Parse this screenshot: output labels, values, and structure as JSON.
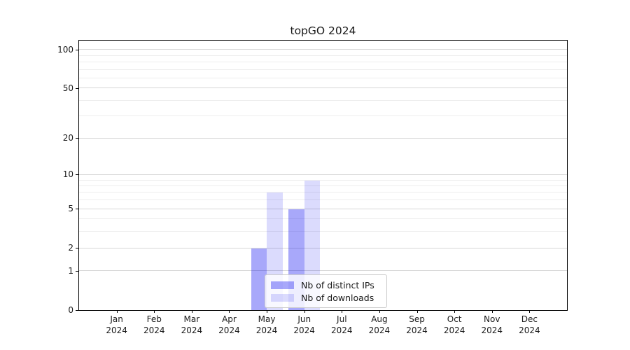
{
  "chart_data": {
    "type": "bar",
    "title": "topGO 2024",
    "categories": [
      "Jan 2024",
      "Feb 2024",
      "Mar 2024",
      "Apr 2024",
      "May 2024",
      "Jun 2024",
      "Jul 2024",
      "Aug 2024",
      "Sep 2024",
      "Oct 2024",
      "Nov 2024",
      "Dec 2024"
    ],
    "series": [
      {
        "name": "Nb of distinct IPs",
        "color": "#0000f0",
        "alpha": 0.34,
        "values": [
          0,
          0,
          0,
          0,
          2,
          5,
          0,
          0,
          0,
          0,
          0,
          0
        ]
      },
      {
        "name": "Nb of downloads",
        "color": "#0000f0",
        "alpha": 0.14,
        "values": [
          0,
          0,
          0,
          0,
          7,
          9,
          0,
          0,
          0,
          0,
          0,
          0
        ]
      }
    ],
    "y_axis": {
      "scale": "log1p",
      "ticks": [
        0,
        1,
        2,
        5,
        10,
        20,
        50,
        100
      ],
      "minor_gridlines": [
        3,
        4,
        6,
        7,
        8,
        9,
        30,
        40,
        60,
        70,
        80,
        90
      ],
      "ylim": [
        0,
        118
      ]
    },
    "x_axis": {
      "tick_count": 12
    },
    "grid": true,
    "legend_position": "inside-bottom-center"
  },
  "colors": {
    "major_gridline": "#d7d7d7",
    "minor_gridline": "#ededed",
    "axis": "#000000",
    "text": "#1a1a1a",
    "legend_border": "#cccccc"
  }
}
